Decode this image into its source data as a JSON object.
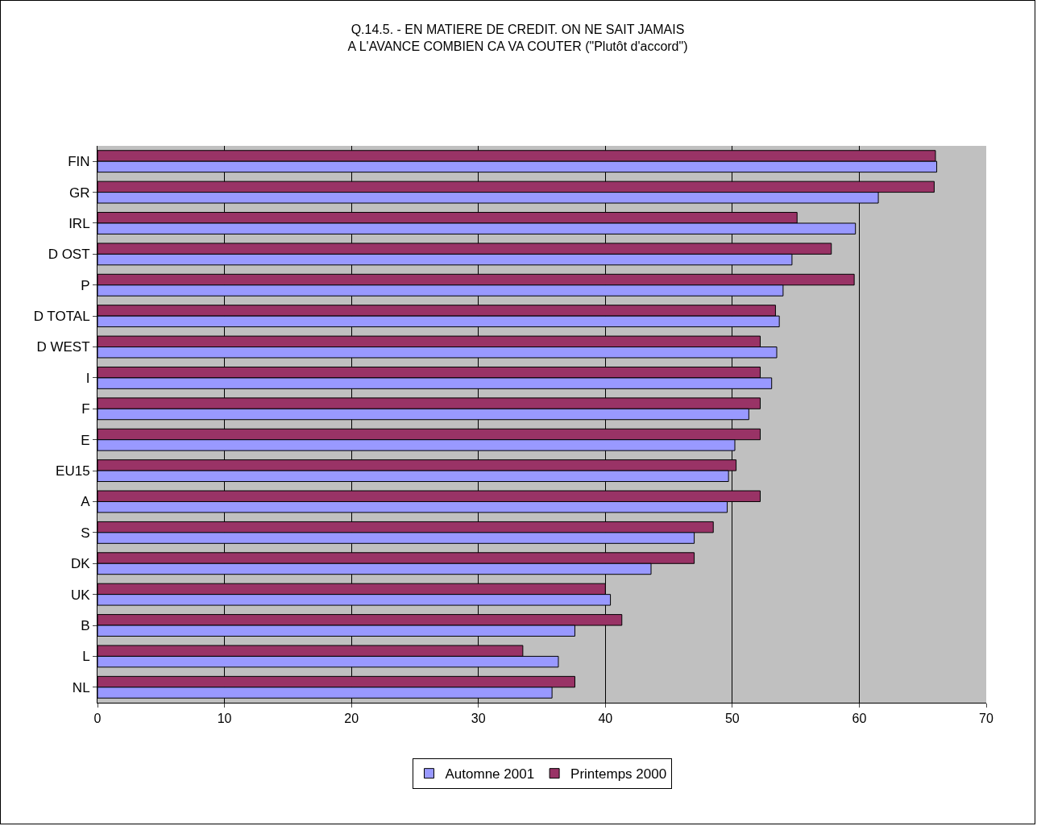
{
  "chart_data": {
    "type": "bar",
    "orientation": "horizontal",
    "title": "Q.14.5. - EN MATIERE DE CREDIT. ON NE SAIT JAMAIS\nA L'AVANCE COMBIEN CA VA COUTER (\"Plutôt d'accord\")",
    "categories": [
      "FIN",
      "GR",
      "IRL",
      "D OST",
      "P",
      "D TOTAL",
      "D WEST",
      "I",
      "F",
      "E",
      "EU15",
      "A",
      "S",
      "DK",
      "UK",
      "B",
      "L",
      "NL"
    ],
    "series": [
      {
        "name": "Automne 2001",
        "color": "#9999ff",
        "values": [
          66.1,
          61.5,
          59.7,
          54.7,
          54.0,
          53.7,
          53.5,
          53.1,
          51.3,
          50.2,
          49.7,
          49.6,
          47.0,
          43.6,
          40.4,
          37.6,
          36.3,
          35.8
        ]
      },
      {
        "name": "Printemps 2000",
        "color": "#993366",
        "values": [
          66.0,
          65.9,
          55.1,
          57.8,
          59.6,
          53.4,
          52.2,
          52.2,
          52.2,
          52.2,
          50.3,
          52.2,
          48.5,
          47.0,
          40.0,
          41.3,
          33.5,
          37.6
        ]
      }
    ],
    "xlim": [
      0,
      70
    ],
    "xticks": [
      0,
      10,
      20,
      30,
      40,
      50,
      60,
      70
    ],
    "grid": "x",
    "legend": "bottom"
  }
}
